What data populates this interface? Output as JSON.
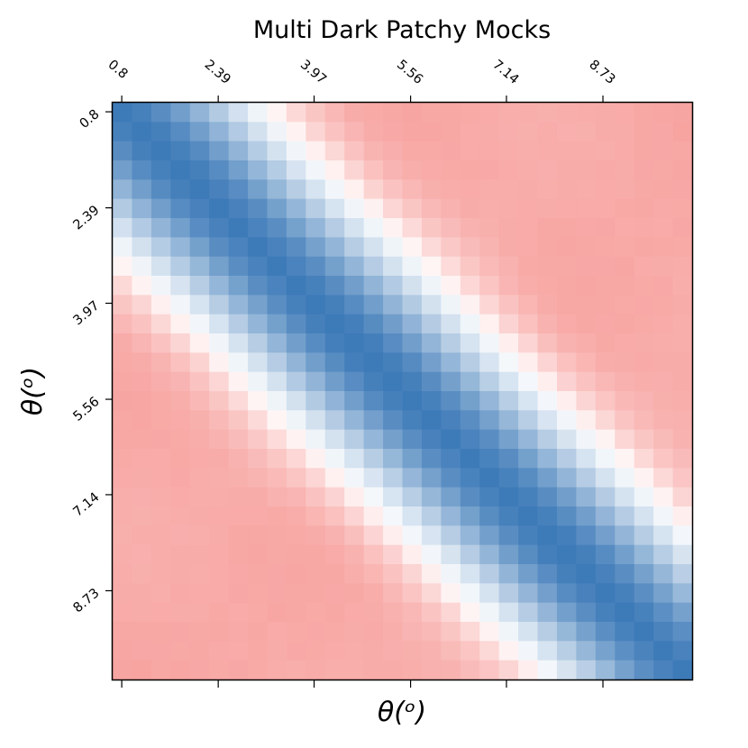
{
  "chart_data": {
    "type": "heatmap",
    "title": "Multi Dark Patchy Mocks",
    "xlabel": "θ(ᵒ)",
    "ylabel": "θ(ᵒ)",
    "x_tick_labels": [
      "0.8",
      "2.39",
      "3.97",
      "5.56",
      "7.14",
      "8.73"
    ],
    "y_tick_labels": [
      "0.8",
      "2.39",
      "3.97",
      "5.56",
      "7.14",
      "8.73"
    ],
    "x_tick_values": [
      0.8,
      2.39,
      3.97,
      5.56,
      7.14,
      8.73
    ],
    "xlim": [
      0.65,
      10.2
    ],
    "ylim": [
      0.65,
      10.2
    ],
    "grid_size": 30,
    "colormap": "diverging blue-white-red",
    "colors": {
      "low": "#3d7ab8",
      "mid": "#ffffff",
      "high": "#f7a3a0"
    },
    "color_range": [
      -0.3,
      1
    ],
    "grid": false,
    "legend": "none",
    "matrix_description": "correlation matrix: diagonal = 1 (blue), off-diagonal anti-correlated (red) with neutral bands near |Δθ|≈3"
  }
}
